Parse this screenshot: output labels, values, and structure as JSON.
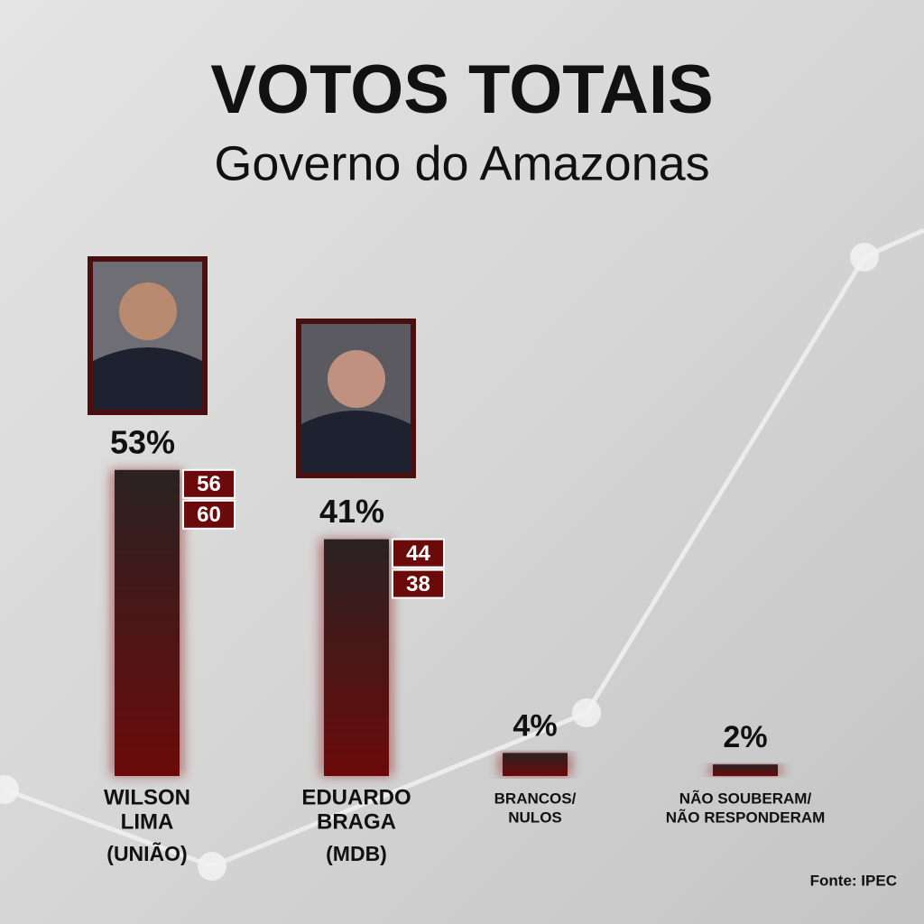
{
  "chart_data": {
    "type": "bar",
    "title": "VOTOS TOTAIS",
    "subtitle": "Governo do Amazonas",
    "categories": [
      [
        "WILSON",
        "LIMA"
      ],
      [
        "EDUARDO",
        "BRAGA"
      ],
      [
        "BRANCOS/",
        "NULOS"
      ],
      [
        "NÃO SOUBERAM/",
        "NÃO RESPONDERAM"
      ]
    ],
    "parties": [
      "(UNIÃO)",
      "(MDB)"
    ],
    "values": [
      53,
      41,
      4,
      2
    ],
    "value_labels": [
      "53%",
      "41%",
      "4%",
      "2%"
    ],
    "badges": [
      [
        56,
        60
      ],
      [
        44,
        38
      ]
    ],
    "color": "#6b0a0a",
    "source": "Fonte: IPEC"
  }
}
